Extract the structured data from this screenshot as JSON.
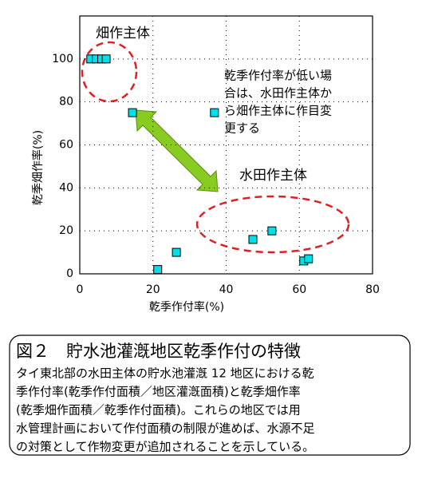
{
  "chart_data": {
    "type": "scatter",
    "x": [
      3,
      4.5,
      6,
      7.2,
      14.4,
      36.8,
      47.3,
      52.5,
      26.4,
      21.3,
      61.2,
      62.5
    ],
    "values": [
      100,
      100,
      100,
      100,
      75,
      75,
      16,
      20,
      10,
      2,
      6,
      7
    ],
    "color": "#00e0e8",
    "xlabel": "乾季作付率(%)",
    "ylabel": "乾季畑作率(%)",
    "xlim": [
      0,
      80
    ],
    "xticks": [
      0,
      20,
      40,
      60,
      80
    ],
    "ylim": [
      0,
      120
    ],
    "yticks": [
      0,
      20,
      40,
      60,
      80,
      100
    ],
    "grid": true,
    "annotations": [
      "畑作主体",
      "水田作主体"
    ],
    "note_lines": [
      "乾季作付率が低い場",
      "合は、水田作主体か",
      "ら畑作主体に作目変",
      "更する"
    ]
  },
  "caption": {
    "title": "図２　貯水池灌漑地区乾季作付の特徴",
    "lines": [
      "タイ東北部の水田主体の貯水池灌漑 12 地区における乾",
      "季作付率(乾季作付面積／地区灌漑面積)と乾季畑作率",
      "(乾季畑作面積／乾季作付面積)。これらの地区では用",
      "水管理計画において作付面積の制限が進めば、水源不足",
      "の対策として作物変更が追加されることを示している。"
    ]
  }
}
